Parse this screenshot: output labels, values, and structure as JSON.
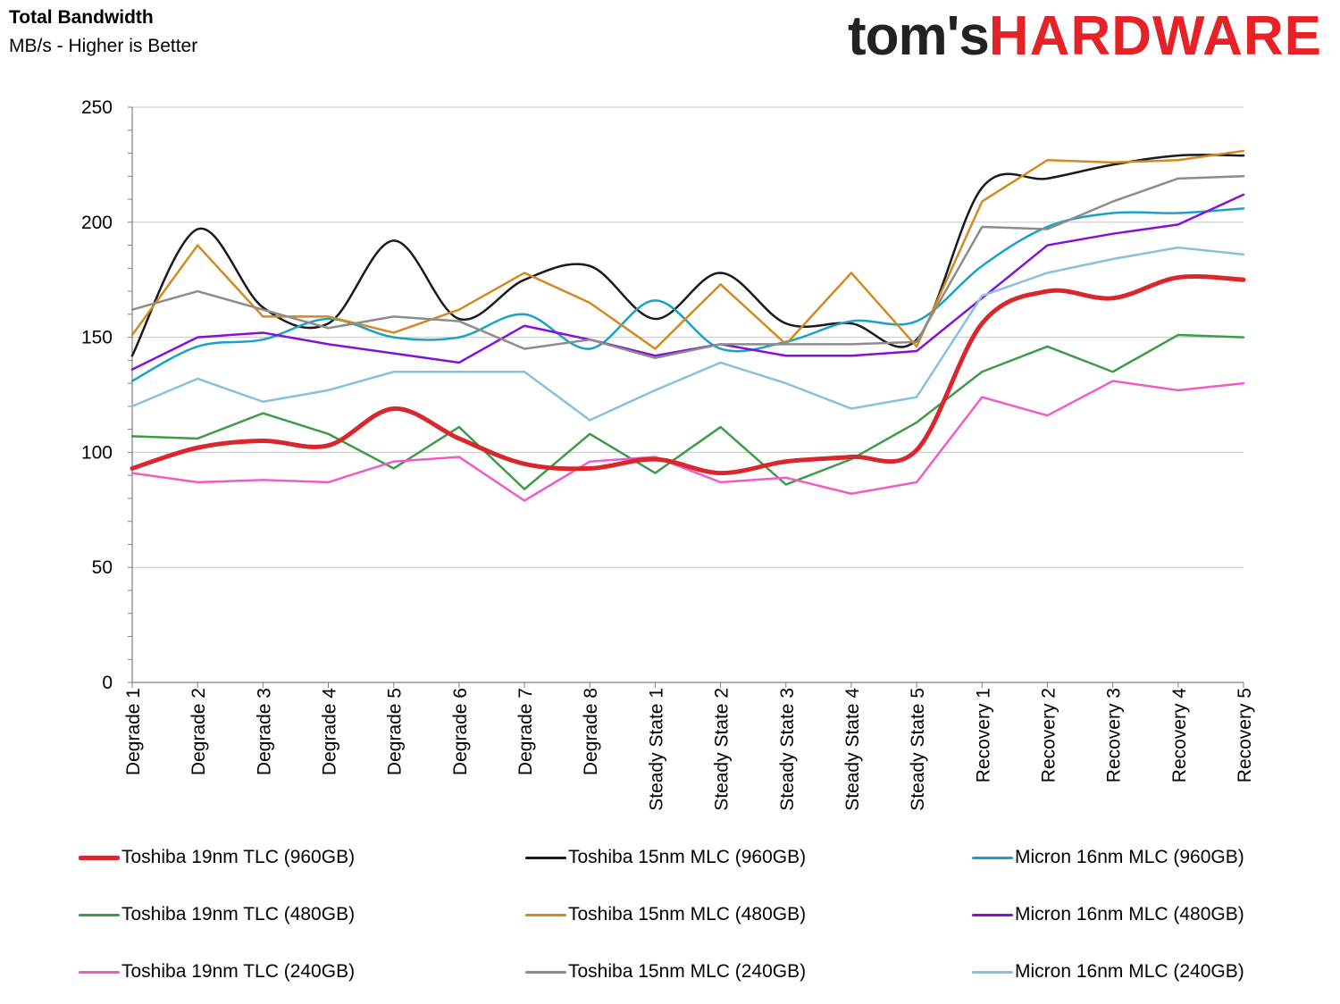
{
  "header": {
    "title": "Total Bandwidth",
    "subtitle": "MB/s - Higher is Better"
  },
  "logo": {
    "part1": "tom's",
    "part2": "HARDWARE"
  },
  "chart_data": {
    "type": "line",
    "title": "Total Bandwidth",
    "ylabel": "MB/s - Higher is Better",
    "xlabel": "",
    "ylim": [
      0,
      250
    ],
    "yticks": [
      0,
      50,
      100,
      150,
      200,
      250
    ],
    "grid": true,
    "legend_position": "bottom",
    "categories": [
      "Degrade 1",
      "Degrade 2",
      "Degrade 3",
      "Degrade 4",
      "Degrade 5",
      "Degrade 6",
      "Degrade 7",
      "Degrade 8",
      "Steady State 1",
      "Steady State 2",
      "Steady State 3",
      "Steady State 4",
      "Steady State 5",
      "Recovery 1",
      "Recovery 2",
      "Recovery 3",
      "Recovery 4",
      "Recovery 5"
    ],
    "series": [
      {
        "name": "Toshiba 19nm TLC (960GB)",
        "color": "#d9272e",
        "width": 5,
        "smooth": true,
        "values": [
          93,
          102,
          105,
          103,
          119,
          106,
          95,
          93,
          97,
          91,
          96,
          98,
          101,
          156,
          170,
          167,
          176,
          175
        ]
      },
      {
        "name": "Toshiba 15nm MLC (960GB)",
        "color": "#1a1a1a",
        "width": 2.5,
        "smooth": true,
        "values": [
          142,
          197,
          163,
          156,
          192,
          158,
          175,
          181,
          158,
          178,
          156,
          156,
          149,
          215,
          219,
          225,
          229,
          229
        ]
      },
      {
        "name": "Micron 16nm MLC (960GB)",
        "color": "#1aa1c9",
        "width": 2.5,
        "smooth": true,
        "values": [
          131,
          146,
          149,
          158,
          150,
          150,
          160,
          145,
          166,
          145,
          148,
          157,
          157,
          181,
          198,
          204,
          204,
          206
        ]
      },
      {
        "name": "Toshiba 19nm TLC (480GB)",
        "color": "#3e9b48",
        "width": 2.5,
        "smooth": false,
        "values": [
          107,
          106,
          117,
          108,
          93,
          111,
          84,
          108,
          91,
          111,
          86,
          97,
          113,
          135,
          146,
          135,
          151,
          150
        ]
      },
      {
        "name": "Toshiba 15nm MLC (480GB)",
        "color": "#d4891f",
        "width": 2.5,
        "smooth": false,
        "values": [
          151,
          190,
          159,
          159,
          152,
          162,
          178,
          165,
          145,
          173,
          147,
          178,
          146,
          209,
          227,
          226,
          227,
          231
        ]
      },
      {
        "name": "Micron 16nm MLC (480GB)",
        "color": "#8510d8",
        "width": 2.5,
        "smooth": false,
        "values": [
          136,
          150,
          152,
          147,
          143,
          139,
          155,
          149,
          142,
          147,
          142,
          142,
          144,
          167,
          190,
          195,
          199,
          212
        ]
      },
      {
        "name": "Toshiba 19nm TLC (240GB)",
        "color": "#f05bc8",
        "width": 2.5,
        "smooth": false,
        "values": [
          91,
          87,
          88,
          87,
          96,
          98,
          79,
          96,
          98,
          87,
          89,
          82,
          87,
          124,
          116,
          131,
          127,
          130
        ]
      },
      {
        "name": "Toshiba 15nm MLC (240GB)",
        "color": "#8c8c8c",
        "width": 2.5,
        "smooth": false,
        "values": [
          162,
          170,
          162,
          154,
          159,
          157,
          145,
          149,
          141,
          147,
          147,
          147,
          148,
          198,
          197,
          209,
          219,
          220
        ]
      },
      {
        "name": "Micron 16nm MLC (240GB)",
        "color": "#88c0e0",
        "width": 2.5,
        "smooth": false,
        "values": [
          120,
          132,
          122,
          127,
          135,
          135,
          135,
          114,
          127,
          139,
          130,
          119,
          124,
          168,
          178,
          184,
          189,
          186
        ]
      }
    ]
  }
}
